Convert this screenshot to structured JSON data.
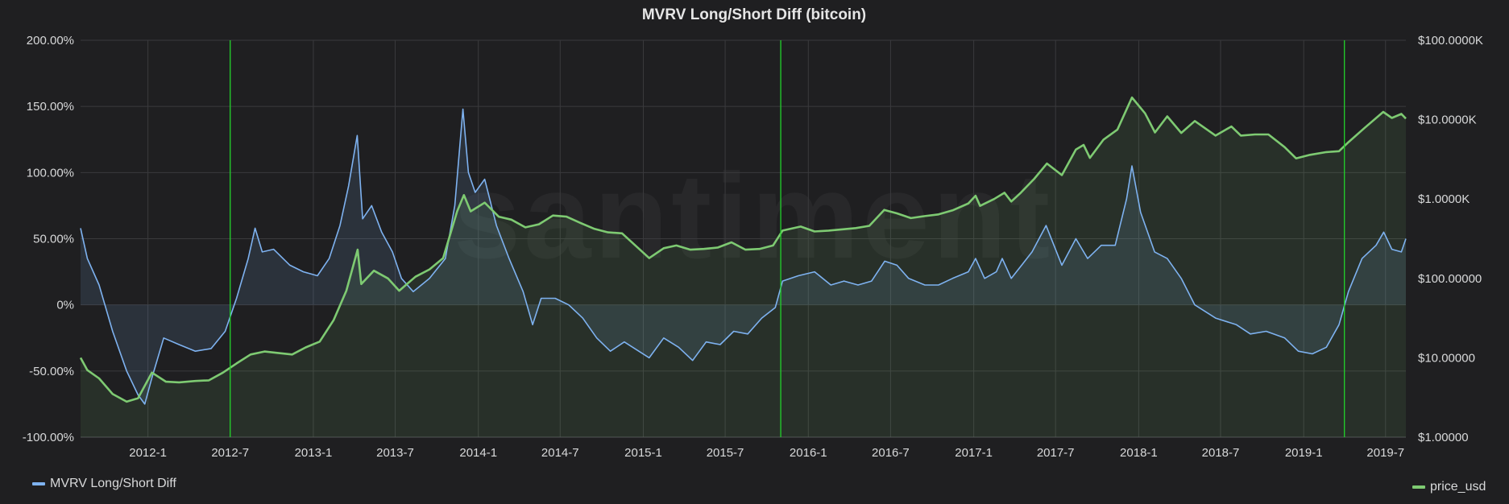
{
  "chart_data": {
    "type": "line",
    "title": "MVRV Long/Short Diff (bitcoin)",
    "watermark": "santiment",
    "x_ticks": [
      "2012-1",
      "2012-7",
      "2013-1",
      "2013-7",
      "2014-1",
      "2014-7",
      "2015-1",
      "2015-7",
      "2016-1",
      "2016-7",
      "2017-1",
      "2017-7",
      "2018-1",
      "2018-7",
      "2019-1",
      "2019-7"
    ],
    "x_range": [
      "2011-08-05",
      "2019-08-15"
    ],
    "y_left": {
      "label": "",
      "ticks": [
        "200.00%",
        "150.00%",
        "100.00%",
        "50.00%",
        "0%",
        "-50.00%",
        "-100.00%"
      ],
      "range": [
        -100,
        200
      ]
    },
    "y_right": {
      "label": "",
      "scale": "log",
      "ticks": [
        "$100.0000K",
        "$10.0000K",
        "$1.0000K",
        "$100.00000",
        "$10.00000",
        "$1.00000"
      ],
      "range": [
        1,
        100000
      ]
    },
    "vertical_markers": [
      "2012-07-01",
      "2015-11-01",
      "2019-04-01"
    ],
    "legend_placement": "bottom",
    "series": [
      {
        "name": "MVRV Long/Short Diff",
        "axis": "left",
        "color": "#7eb2f0",
        "points": [
          [
            "2011-08-05",
            58
          ],
          [
            "2011-08-20",
            35
          ],
          [
            "2011-09-15",
            15
          ],
          [
            "2011-10-15",
            -20
          ],
          [
            "2011-11-15",
            -50
          ],
          [
            "2011-12-10",
            -68
          ],
          [
            "2011-12-25",
            -75
          ],
          [
            "2012-01-10",
            -55
          ],
          [
            "2012-02-05",
            -25
          ],
          [
            "2012-03-10",
            -30
          ],
          [
            "2012-04-15",
            -35
          ],
          [
            "2012-05-20",
            -33
          ],
          [
            "2012-06-20",
            -20
          ],
          [
            "2012-07-15",
            5
          ],
          [
            "2012-08-10",
            35
          ],
          [
            "2012-08-25",
            58
          ],
          [
            "2012-09-10",
            40
          ],
          [
            "2012-10-05",
            42
          ],
          [
            "2012-11-10",
            30
          ],
          [
            "2012-12-10",
            25
          ],
          [
            "2013-01-10",
            22
          ],
          [
            "2013-02-05",
            35
          ],
          [
            "2013-03-01",
            60
          ],
          [
            "2013-03-20",
            90
          ],
          [
            "2013-04-08",
            128
          ],
          [
            "2013-04-20",
            65
          ],
          [
            "2013-05-10",
            75
          ],
          [
            "2013-06-01",
            55
          ],
          [
            "2013-06-25",
            40
          ],
          [
            "2013-07-15",
            20
          ],
          [
            "2013-08-10",
            10
          ],
          [
            "2013-09-15",
            20
          ],
          [
            "2013-10-20",
            35
          ],
          [
            "2013-11-10",
            75
          ],
          [
            "2013-11-28",
            148
          ],
          [
            "2013-12-10",
            100
          ],
          [
            "2013-12-25",
            85
          ],
          [
            "2014-01-15",
            95
          ],
          [
            "2014-02-10",
            60
          ],
          [
            "2014-03-10",
            35
          ],
          [
            "2014-04-10",
            10
          ],
          [
            "2014-05-01",
            -15
          ],
          [
            "2014-05-20",
            5
          ],
          [
            "2014-06-20",
            5
          ],
          [
            "2014-07-20",
            0
          ],
          [
            "2014-08-20",
            -10
          ],
          [
            "2014-09-20",
            -25
          ],
          [
            "2014-10-20",
            -35
          ],
          [
            "2014-11-20",
            -28
          ],
          [
            "2015-01-14",
            -40
          ],
          [
            "2015-02-15",
            -25
          ],
          [
            "2015-03-20",
            -32
          ],
          [
            "2015-04-20",
            -42
          ],
          [
            "2015-05-20",
            -28
          ],
          [
            "2015-06-20",
            -30
          ],
          [
            "2015-07-20",
            -20
          ],
          [
            "2015-08-20",
            -22
          ],
          [
            "2015-09-20",
            -10
          ],
          [
            "2015-10-20",
            -2
          ],
          [
            "2015-11-05",
            18
          ],
          [
            "2015-12-10",
            22
          ],
          [
            "2016-01-15",
            25
          ],
          [
            "2016-02-20",
            15
          ],
          [
            "2016-03-20",
            18
          ],
          [
            "2016-04-20",
            15
          ],
          [
            "2016-05-20",
            18
          ],
          [
            "2016-06-18",
            33
          ],
          [
            "2016-07-15",
            30
          ],
          [
            "2016-08-10",
            20
          ],
          [
            "2016-09-15",
            15
          ],
          [
            "2016-10-15",
            15
          ],
          [
            "2016-11-15",
            20
          ],
          [
            "2016-12-20",
            25
          ],
          [
            "2017-01-05",
            35
          ],
          [
            "2017-01-25",
            20
          ],
          [
            "2017-02-20",
            25
          ],
          [
            "2017-03-05",
            35
          ],
          [
            "2017-03-25",
            20
          ],
          [
            "2017-05-10",
            40
          ],
          [
            "2017-06-10",
            60
          ],
          [
            "2017-07-15",
            30
          ],
          [
            "2017-08-15",
            50
          ],
          [
            "2017-09-10",
            35
          ],
          [
            "2017-10-10",
            45
          ],
          [
            "2017-11-10",
            45
          ],
          [
            "2017-12-05",
            80
          ],
          [
            "2017-12-17",
            105
          ],
          [
            "2018-01-05",
            70
          ],
          [
            "2018-02-05",
            40
          ],
          [
            "2018-03-05",
            35
          ],
          [
            "2018-04-05",
            20
          ],
          [
            "2018-05-05",
            0
          ],
          [
            "2018-06-20",
            -10
          ],
          [
            "2018-08-05",
            -15
          ],
          [
            "2018-09-05",
            -22
          ],
          [
            "2018-10-10",
            -20
          ],
          [
            "2018-11-20",
            -25
          ],
          [
            "2018-12-20",
            -35
          ],
          [
            "2019-01-20",
            -37
          ],
          [
            "2019-02-20",
            -32
          ],
          [
            "2019-03-20",
            -15
          ],
          [
            "2019-04-10",
            10
          ],
          [
            "2019-05-10",
            35
          ],
          [
            "2019-06-10",
            45
          ],
          [
            "2019-06-27",
            55
          ],
          [
            "2019-07-15",
            42
          ],
          [
            "2019-08-05",
            40
          ],
          [
            "2019-08-15",
            50
          ]
        ]
      },
      {
        "name": "price_usd",
        "axis": "right",
        "color": "#7eca72",
        "points": [
          [
            "2011-08-05",
            10
          ],
          [
            "2011-08-20",
            7
          ],
          [
            "2011-09-15",
            5.5
          ],
          [
            "2011-10-15",
            3.5
          ],
          [
            "2011-11-15",
            2.8
          ],
          [
            "2011-12-10",
            3.1
          ],
          [
            "2012-01-10",
            6.5
          ],
          [
            "2012-02-10",
            5
          ],
          [
            "2012-03-10",
            4.9
          ],
          [
            "2012-04-15",
            5.1
          ],
          [
            "2012-05-15",
            5.2
          ],
          [
            "2012-06-15",
            6.5
          ],
          [
            "2012-07-15",
            8.5
          ],
          [
            "2012-08-15",
            11
          ],
          [
            "2012-09-15",
            12
          ],
          [
            "2012-10-15",
            11.5
          ],
          [
            "2012-11-15",
            11
          ],
          [
            "2012-12-15",
            13.5
          ],
          [
            "2013-01-15",
            16
          ],
          [
            "2013-02-15",
            30
          ],
          [
            "2013-03-15",
            70
          ],
          [
            "2013-04-09",
            230
          ],
          [
            "2013-04-17",
            85
          ],
          [
            "2013-05-15",
            125
          ],
          [
            "2013-06-15",
            100
          ],
          [
            "2013-07-10",
            70
          ],
          [
            "2013-08-15",
            105
          ],
          [
            "2013-09-15",
            130
          ],
          [
            "2013-10-15",
            180
          ],
          [
            "2013-11-15",
            700
          ],
          [
            "2013-11-30",
            1120
          ],
          [
            "2013-12-15",
            700
          ],
          [
            "2014-01-15",
            900
          ],
          [
            "2014-02-15",
            600
          ],
          [
            "2014-03-15",
            550
          ],
          [
            "2014-04-15",
            440
          ],
          [
            "2014-05-15",
            480
          ],
          [
            "2014-06-15",
            620
          ],
          [
            "2014-07-15",
            600
          ],
          [
            "2014-08-15",
            500
          ],
          [
            "2014-09-15",
            420
          ],
          [
            "2014-10-15",
            380
          ],
          [
            "2014-11-15",
            370
          ],
          [
            "2015-01-14",
            180
          ],
          [
            "2015-02-15",
            240
          ],
          [
            "2015-03-15",
            260
          ],
          [
            "2015-04-15",
            230
          ],
          [
            "2015-05-15",
            235
          ],
          [
            "2015-06-15",
            245
          ],
          [
            "2015-07-15",
            285
          ],
          [
            "2015-08-15",
            230
          ],
          [
            "2015-09-15",
            235
          ],
          [
            "2015-10-15",
            260
          ],
          [
            "2015-11-05",
            400
          ],
          [
            "2015-12-15",
            450
          ],
          [
            "2016-01-15",
            390
          ],
          [
            "2016-02-15",
            400
          ],
          [
            "2016-03-15",
            415
          ],
          [
            "2016-04-15",
            430
          ],
          [
            "2016-05-15",
            460
          ],
          [
            "2016-06-17",
            730
          ],
          [
            "2016-07-15",
            660
          ],
          [
            "2016-08-15",
            575
          ],
          [
            "2016-09-15",
            610
          ],
          [
            "2016-10-15",
            640
          ],
          [
            "2016-11-15",
            720
          ],
          [
            "2016-12-20",
            880
          ],
          [
            "2017-01-05",
            1100
          ],
          [
            "2017-01-15",
            820
          ],
          [
            "2017-02-15",
            1000
          ],
          [
            "2017-03-10",
            1200
          ],
          [
            "2017-03-25",
            930
          ],
          [
            "2017-04-15",
            1200
          ],
          [
            "2017-05-15",
            1800
          ],
          [
            "2017-06-12",
            2800
          ],
          [
            "2017-07-15",
            2000
          ],
          [
            "2017-08-15",
            4200
          ],
          [
            "2017-09-01",
            4800
          ],
          [
            "2017-09-15",
            3300
          ],
          [
            "2017-10-15",
            5600
          ],
          [
            "2017-11-15",
            7500
          ],
          [
            "2017-12-17",
            19000
          ],
          [
            "2018-01-15",
            12000
          ],
          [
            "2018-02-06",
            6900
          ],
          [
            "2018-03-05",
            11000
          ],
          [
            "2018-04-05",
            6800
          ],
          [
            "2018-05-05",
            9600
          ],
          [
            "2018-06-20",
            6300
          ],
          [
            "2018-07-25",
            8200
          ],
          [
            "2018-08-15",
            6300
          ],
          [
            "2018-09-15",
            6500
          ],
          [
            "2018-10-15",
            6500
          ],
          [
            "2018-11-20",
            4500
          ],
          [
            "2018-12-15",
            3250
          ],
          [
            "2019-01-15",
            3600
          ],
          [
            "2019-02-20",
            3900
          ],
          [
            "2019-03-20",
            4000
          ],
          [
            "2019-04-10",
            5200
          ],
          [
            "2019-05-15",
            7800
          ],
          [
            "2019-06-26",
            12500
          ],
          [
            "2019-07-15",
            10500
          ],
          [
            "2019-08-05",
            11800
          ],
          [
            "2019-08-15",
            10300
          ]
        ]
      }
    ]
  }
}
